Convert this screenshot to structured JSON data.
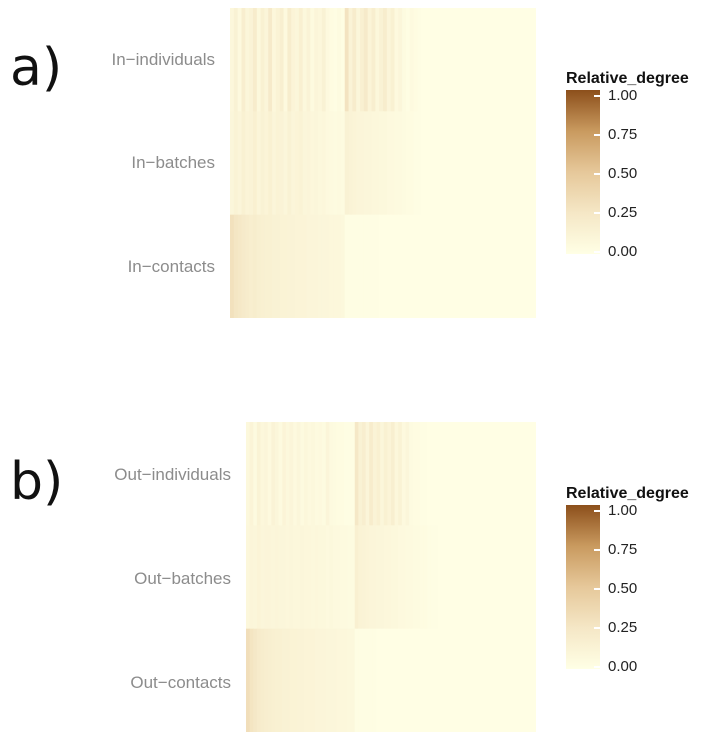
{
  "chart_data": [
    {
      "type": "heatmap",
      "panel": "a)",
      "rows": [
        "In−individuals",
        "In−batches",
        "In−contacts"
      ],
      "legend": {
        "title": "Relative_degree",
        "ticks": [
          "1.00",
          "0.75",
          "0.50",
          "0.25",
          "0.00"
        ],
        "range": [
          0,
          1
        ],
        "low_color": "#ffffe5",
        "high_color": "#8c4f1b"
      },
      "columns": 80,
      "grid": false,
      "values": [
        [
          0.08,
          0.14,
          0.06,
          0.18,
          0.09,
          0.12,
          0.2,
          0.07,
          0.15,
          0.1,
          0.22,
          0.08,
          0.13,
          0.17,
          0.06,
          0.19,
          0.11,
          0.09,
          0.16,
          0.07,
          0.12,
          0.05,
          0.1,
          0.08,
          0.14,
          0.06,
          0.03,
          0.02,
          0.04,
          0.02,
          0.28,
          0.12,
          0.2,
          0.09,
          0.16,
          0.22,
          0.11,
          0.18,
          0.08,
          0.14,
          0.19,
          0.1,
          0.15,
          0.06,
          0.09,
          0.04,
          0.02,
          0.05,
          0.03,
          0.02,
          0.01,
          0.01,
          0.01,
          0.01,
          0.01,
          0.01,
          0.01,
          0.01,
          0.01,
          0.01,
          0.01,
          0.01,
          0.01,
          0.01,
          0.01,
          0.01,
          0.01,
          0.01,
          0.01,
          0.01,
          0.01,
          0.01,
          0.01,
          0.01,
          0.01,
          0.01,
          0.01,
          0.01,
          0.01,
          0.01
        ],
        [
          0.09,
          0.13,
          0.1,
          0.15,
          0.11,
          0.12,
          0.16,
          0.1,
          0.14,
          0.11,
          0.15,
          0.1,
          0.13,
          0.12,
          0.09,
          0.14,
          0.1,
          0.11,
          0.13,
          0.09,
          0.1,
          0.08,
          0.09,
          0.07,
          0.08,
          0.06,
          0.05,
          0.04,
          0.05,
          0.04,
          0.14,
          0.12,
          0.11,
          0.1,
          0.1,
          0.09,
          0.09,
          0.08,
          0.08,
          0.07,
          0.07,
          0.06,
          0.06,
          0.05,
          0.05,
          0.04,
          0.03,
          0.03,
          0.02,
          0.02,
          0.01,
          0.01,
          0.01,
          0.01,
          0.01,
          0.01,
          0.01,
          0.01,
          0.01,
          0.01,
          0.01,
          0.01,
          0.01,
          0.01,
          0.01,
          0.01,
          0.01,
          0.01,
          0.01,
          0.01,
          0.01,
          0.01,
          0.01,
          0.01,
          0.01,
          0.01,
          0.01,
          0.01,
          0.01,
          0.01
        ],
        [
          0.3,
          0.26,
          0.24,
          0.22,
          0.2,
          0.18,
          0.19,
          0.17,
          0.16,
          0.15,
          0.15,
          0.14,
          0.14,
          0.13,
          0.13,
          0.12,
          0.12,
          0.11,
          0.11,
          0.11,
          0.1,
          0.1,
          0.1,
          0.09,
          0.09,
          0.09,
          0.08,
          0.08,
          0.08,
          0.07,
          0.02,
          0.02,
          0.02,
          0.02,
          0.02,
          0.02,
          0.02,
          0.02,
          0.02,
          0.01,
          0.01,
          0.01,
          0.01,
          0.01,
          0.01,
          0.01,
          0.01,
          0.01,
          0.01,
          0.01,
          0.01,
          0.01,
          0.01,
          0.01,
          0.01,
          0.01,
          0.01,
          0.01,
          0.01,
          0.01,
          0.01,
          0.01,
          0.01,
          0.01,
          0.01,
          0.01,
          0.01,
          0.01,
          0.01,
          0.01,
          0.01,
          0.01,
          0.01,
          0.01,
          0.01,
          0.01,
          0.01,
          0.01,
          0.01,
          0.01
        ]
      ]
    },
    {
      "type": "heatmap",
      "panel": "b)",
      "rows": [
        "Out−individuals",
        "Out−batches",
        "Out−contacts"
      ],
      "legend": {
        "title": "Relative_degree",
        "ticks": [
          "1.00",
          "0.75",
          "0.50",
          "0.25",
          "0.00"
        ],
        "range": [
          0,
          1
        ],
        "low_color": "#ffffe5",
        "high_color": "#8c4f1b"
      },
      "columns": 80,
      "grid": false,
      "values": [
        [
          0.07,
          0.11,
          0.05,
          0.13,
          0.08,
          0.1,
          0.06,
          0.12,
          0.09,
          0.05,
          0.11,
          0.07,
          0.1,
          0.06,
          0.09,
          0.05,
          0.08,
          0.06,
          0.07,
          0.05,
          0.06,
          0.04,
          0.1,
          0.05,
          0.04,
          0.03,
          0.03,
          0.02,
          0.02,
          0.02,
          0.24,
          0.14,
          0.18,
          0.1,
          0.2,
          0.12,
          0.16,
          0.09,
          0.15,
          0.11,
          0.17,
          0.08,
          0.13,
          0.06,
          0.09,
          0.04,
          0.03,
          0.03,
          0.02,
          0.02,
          0.01,
          0.01,
          0.01,
          0.01,
          0.01,
          0.01,
          0.01,
          0.01,
          0.01,
          0.01,
          0.01,
          0.01,
          0.01,
          0.01,
          0.01,
          0.01,
          0.01,
          0.01,
          0.01,
          0.01,
          0.01,
          0.01,
          0.01,
          0.01,
          0.01,
          0.01,
          0.01,
          0.01,
          0.01,
          0.01
        ],
        [
          0.08,
          0.1,
          0.09,
          0.11,
          0.09,
          0.1,
          0.1,
          0.09,
          0.1,
          0.09,
          0.09,
          0.08,
          0.09,
          0.08,
          0.08,
          0.09,
          0.08,
          0.08,
          0.07,
          0.08,
          0.07,
          0.07,
          0.06,
          0.07,
          0.06,
          0.06,
          0.05,
          0.05,
          0.04,
          0.04,
          0.16,
          0.13,
          0.12,
          0.11,
          0.1,
          0.1,
          0.09,
          0.09,
          0.08,
          0.08,
          0.07,
          0.07,
          0.06,
          0.06,
          0.05,
          0.05,
          0.04,
          0.04,
          0.03,
          0.03,
          0.02,
          0.02,
          0.02,
          0.01,
          0.01,
          0.01,
          0.01,
          0.01,
          0.01,
          0.01,
          0.01,
          0.01,
          0.01,
          0.01,
          0.01,
          0.01,
          0.01,
          0.01,
          0.01,
          0.01,
          0.01,
          0.01,
          0.01,
          0.01,
          0.01,
          0.01,
          0.01,
          0.01,
          0.01,
          0.01
        ],
        [
          0.32,
          0.27,
          0.24,
          0.21,
          0.19,
          0.18,
          0.17,
          0.16,
          0.15,
          0.15,
          0.14,
          0.14,
          0.13,
          0.13,
          0.12,
          0.12,
          0.11,
          0.11,
          0.11,
          0.1,
          0.1,
          0.1,
          0.09,
          0.09,
          0.09,
          0.08,
          0.08,
          0.08,
          0.07,
          0.07,
          0.02,
          0.02,
          0.02,
          0.02,
          0.02,
          0.02,
          0.01,
          0.01,
          0.01,
          0.01,
          0.01,
          0.01,
          0.01,
          0.01,
          0.01,
          0.01,
          0.01,
          0.01,
          0.01,
          0.01,
          0.01,
          0.01,
          0.01,
          0.01,
          0.01,
          0.01,
          0.01,
          0.01,
          0.01,
          0.01,
          0.01,
          0.01,
          0.01,
          0.01,
          0.01,
          0.01,
          0.01,
          0.01,
          0.01,
          0.01,
          0.01,
          0.01,
          0.01,
          0.01,
          0.01,
          0.01,
          0.01,
          0.01,
          0.01,
          0.01
        ]
      ]
    }
  ]
}
